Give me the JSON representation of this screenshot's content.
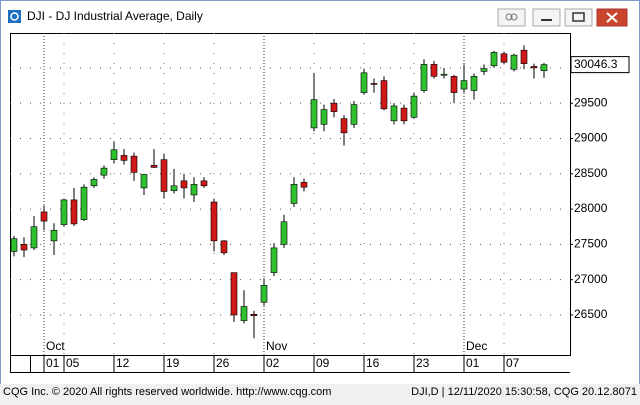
{
  "window": {
    "title": "DJI - DJ Industrial Average, Daily"
  },
  "chart_data": {
    "type": "candlestick",
    "categories": [
      null,
      null,
      null,
      "01",
      null,
      "05",
      null,
      null,
      null,
      null,
      "12",
      null,
      null,
      null,
      null,
      "19",
      null,
      null,
      null,
      null,
      "26",
      null,
      null,
      null,
      null,
      "02",
      null,
      null,
      null,
      null,
      "09",
      null,
      null,
      null,
      null,
      "16",
      null,
      null,
      null,
      null,
      "23",
      null,
      null,
      null,
      null,
      "01",
      null,
      null,
      null,
      "07",
      null,
      null,
      null,
      null
    ],
    "months": [
      null,
      null,
      null,
      "Oct",
      null,
      null,
      null,
      null,
      null,
      null,
      null,
      null,
      null,
      null,
      null,
      null,
      null,
      null,
      null,
      null,
      null,
      null,
      null,
      null,
      null,
      "Nov",
      null,
      null,
      null,
      null,
      null,
      null,
      null,
      null,
      null,
      null,
      null,
      null,
      null,
      null,
      null,
      null,
      null,
      null,
      null,
      "Dec",
      null,
      null,
      null,
      null,
      null,
      null,
      null,
      null
    ],
    "open": [
      27400,
      27500,
      27450,
      27960,
      27550,
      27780,
      28130,
      27850,
      28330,
      28480,
      28700,
      28760,
      28750,
      28300,
      28620,
      28700,
      28260,
      28400,
      28200,
      28400,
      28100,
      27550,
      27100,
      26420,
      26510,
      26680,
      27100,
      27500,
      28080,
      28380,
      29150,
      29200,
      29500,
      29280,
      29200,
      29650,
      29780,
      29820,
      29250,
      29430,
      29300,
      29680,
      30050,
      29900,
      29880,
      29700,
      29680,
      29950,
      30030,
      30200,
      29980,
      30250,
      30020,
      29960
    ],
    "high": [
      27620,
      27600,
      27900,
      28050,
      27800,
      28150,
      28300,
      28350,
      28450,
      28620,
      28960,
      28850,
      28800,
      28500,
      28850,
      28780,
      28570,
      28500,
      28450,
      28450,
      28150,
      27560,
      27100,
      26850,
      26560,
      27020,
      27520,
      27920,
      28450,
      28430,
      29930,
      29480,
      29560,
      29330,
      29530,
      29990,
      29850,
      29880,
      29500,
      29480,
      29650,
      30120,
      30100,
      30000,
      29900,
      30050,
      29920,
      30050,
      30240,
      30230,
      30200,
      30320,
      30060,
      30070
    ],
    "low": [
      27330,
      27320,
      27420,
      27700,
      27350,
      27750,
      27760,
      27830,
      28300,
      28430,
      28650,
      28630,
      28400,
      28200,
      28580,
      28150,
      28220,
      28150,
      28100,
      28300,
      27400,
      27350,
      26400,
      26380,
      26170,
      26630,
      27050,
      27450,
      28030,
      28250,
      29100,
      29100,
      29300,
      28900,
      29150,
      29620,
      29650,
      29400,
      29200,
      29200,
      29280,
      29650,
      29850,
      29850,
      29500,
      29650,
      29550,
      29900,
      30000,
      30050,
      29950,
      29980,
      29850,
      29860
    ],
    "close": [
      27580,
      27420,
      27750,
      27830,
      27700,
      28130,
      27790,
      28310,
      28420,
      28580,
      28840,
      28690,
      28520,
      28490,
      28590,
      28250,
      28330,
      28300,
      28350,
      28330,
      27550,
      27380,
      26500,
      26620,
      26490,
      26920,
      27450,
      27820,
      28350,
      28310,
      29550,
      29410,
      29380,
      29080,
      29480,
      29930,
      29770,
      29420,
      29460,
      29250,
      29600,
      30050,
      29880,
      29910,
      29650,
      29820,
      29880,
      29990,
      30220,
      30080,
      30180,
      30060,
      30000,
      30046.3
    ],
    "up_color": "#2ec02e",
    "down_color": "#d01818",
    "ylim": [
      25933,
      30494
    ],
    "yticks": [
      26500,
      27000,
      27500,
      28000,
      28500,
      29000,
      29500,
      30000
    ],
    "last_value": 30046.3
  },
  "footer": {
    "left": "CQG Inc. © 2020 All rights reserved worldwide. http://www.cqg.com",
    "right": "DJI,D | 12/11/2020 15:30:58, CQG 20.12.8071"
  }
}
